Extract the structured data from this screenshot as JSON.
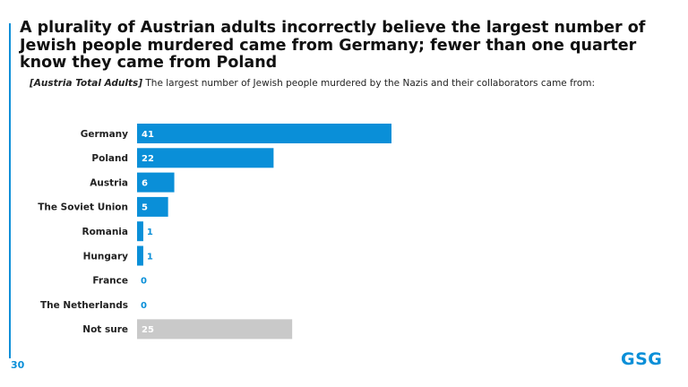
{
  "title": "A plurality of Austrian adults incorrectly believe the largest number of Jewish people murdered came from Germany; fewer than one quarter know they came from Poland",
  "subtitle_lead": "[Austria Total Adults]",
  "subtitle_text": " The largest number of Jewish people murdered by the Nazis and their collaborators came from:",
  "page_number": "30",
  "logo": "GSG",
  "colors": {
    "accent": "#0a8fd8",
    "bar": "#0a8fd8",
    "bar_not_sure": "#c9c9c9",
    "title": "#111111"
  },
  "chart_data": {
    "type": "bar",
    "orientation": "horizontal",
    "categories": [
      "Germany",
      "Poland",
      "Austria",
      "The Soviet Union",
      "Romania",
      "Hungary",
      "France",
      "The Netherlands",
      "Not sure"
    ],
    "values": [
      41,
      22,
      6,
      5,
      1,
      1,
      0,
      0,
      25
    ],
    "labels": [
      "41",
      "22",
      "6",
      "5",
      "1",
      "1",
      "0",
      "0",
      "25"
    ],
    "highlight": [
      "Not sure"
    ],
    "xlim": [
      0,
      41
    ],
    "grid": false,
    "legend": "none"
  }
}
